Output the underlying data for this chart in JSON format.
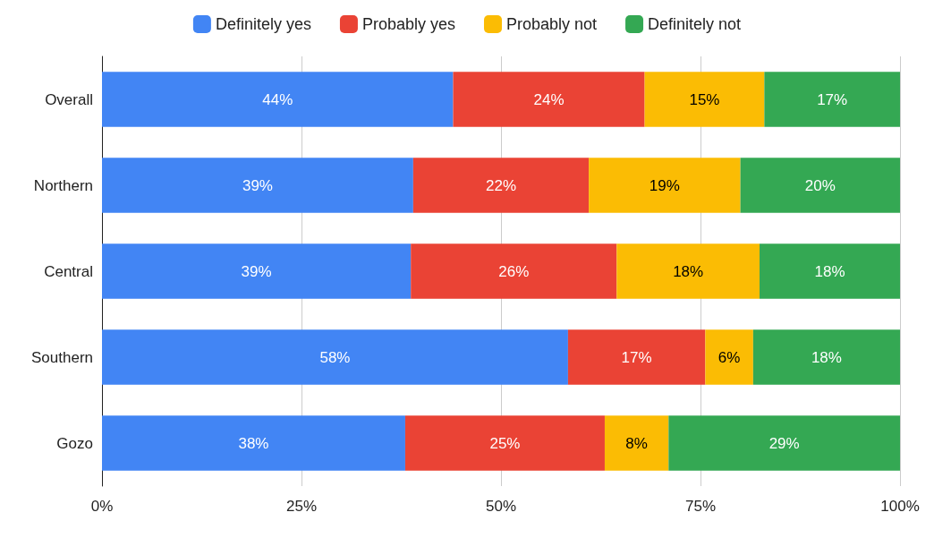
{
  "chart_data": {
    "type": "bar",
    "orientation": "horizontal",
    "stacked": true,
    "categories": [
      "Overall",
      "Northern",
      "Central",
      "Southern",
      "Gozo"
    ],
    "series": [
      {
        "name": "Definitely yes",
        "color": "#4285f4",
        "values": [
          44,
          39,
          38.7,
          58.4,
          38
        ],
        "value_labels": [
          "44%",
          "39%",
          "39%",
          "58%",
          "38%"
        ]
      },
      {
        "name": "Probably yes",
        "color": "#ea4335",
        "values": [
          24,
          22,
          25.8,
          17.2,
          25
        ],
        "value_labels": [
          "24%",
          "22%",
          "26%",
          "17%",
          "25%"
        ]
      },
      {
        "name": "Probably not",
        "color": "#fbbc04",
        "values": [
          15,
          19,
          17.9,
          6.0,
          8
        ],
        "value_labels": [
          "15%",
          "19%",
          "18%",
          "6%",
          "8%"
        ]
      },
      {
        "name": "Definitely not",
        "color": "#34a853",
        "values": [
          17,
          20,
          17.6,
          18.4,
          29
        ],
        "value_labels": [
          "17%",
          "20%",
          "18%",
          "18%",
          "29%"
        ]
      }
    ],
    "xlim": [
      0,
      100
    ],
    "xticks": [
      {
        "value": 0,
        "label": "0%"
      },
      {
        "value": 25,
        "label": "25%"
      },
      {
        "value": 50,
        "label": "50%"
      },
      {
        "value": 75,
        "label": "75%"
      },
      {
        "value": 100,
        "label": "100%"
      }
    ],
    "grid": "x",
    "legend": "top"
  }
}
